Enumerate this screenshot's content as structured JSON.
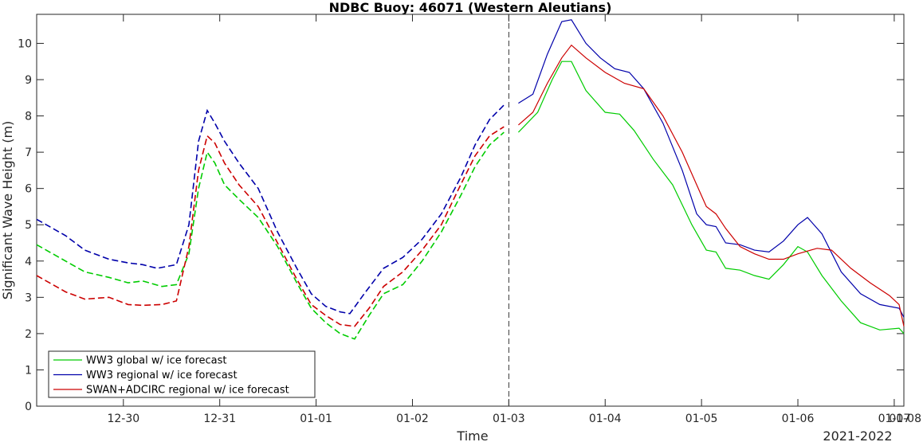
{
  "chart_data": {
    "type": "line",
    "title": "NDBC Buoy: 46071 (Western Aleutians)",
    "xlabel": "Time",
    "ylabel": "Significant Wave Height (m)",
    "x_secondary_label": "2021-2022",
    "xlim": [
      0,
      9.0
    ],
    "ylim": [
      0,
      10.8
    ],
    "x_ticks": [
      {
        "value": 0.9,
        "label": "12-30"
      },
      {
        "value": 1.9,
        "label": "12-31"
      },
      {
        "value": 2.9,
        "label": "01-01"
      },
      {
        "value": 3.9,
        "label": "01-02"
      },
      {
        "value": 4.9,
        "label": "01-03"
      },
      {
        "value": 5.9,
        "label": "01-04"
      },
      {
        "value": 6.9,
        "label": "01-05"
      },
      {
        "value": 7.9,
        "label": "01-06"
      },
      {
        "value": 8.9,
        "label": "01-07"
      },
      {
        "value": 9.0,
        "label": "01-08"
      }
    ],
    "y_ticks": [
      0,
      1,
      2,
      3,
      4,
      5,
      6,
      7,
      8,
      9,
      10
    ],
    "forecast_start_x": 4.9,
    "legend_position": "bottom-left",
    "colors": {
      "green": "#00cc00",
      "blue": "#0000aa",
      "red": "#cc0000",
      "axis": "#262626"
    },
    "series": [
      {
        "name": "WW3 global w/ ice forecast",
        "color": "#00cc00",
        "points": [
          [
            0.0,
            4.45
          ],
          [
            0.3,
            4.0
          ],
          [
            0.5,
            3.7
          ],
          [
            0.75,
            3.55
          ],
          [
            0.95,
            3.4
          ],
          [
            1.1,
            3.45
          ],
          [
            1.3,
            3.3
          ],
          [
            1.45,
            3.35
          ],
          [
            1.58,
            4.2
          ],
          [
            1.68,
            6.0
          ],
          [
            1.77,
            7.0
          ],
          [
            1.85,
            6.7
          ],
          [
            1.95,
            6.1
          ],
          [
            2.1,
            5.7
          ],
          [
            2.3,
            5.2
          ],
          [
            2.5,
            4.4
          ],
          [
            2.7,
            3.4
          ],
          [
            2.85,
            2.7
          ],
          [
            3.0,
            2.3
          ],
          [
            3.15,
            2.0
          ],
          [
            3.3,
            1.85
          ],
          [
            3.45,
            2.5
          ],
          [
            3.6,
            3.1
          ],
          [
            3.8,
            3.35
          ],
          [
            4.0,
            4.0
          ],
          [
            4.2,
            4.8
          ],
          [
            4.4,
            5.8
          ],
          [
            4.55,
            6.6
          ],
          [
            4.7,
            7.2
          ],
          [
            4.85,
            7.55
          ],
          [
            5.0,
            7.55
          ],
          [
            5.2,
            8.1
          ],
          [
            5.35,
            9.0
          ],
          [
            5.45,
            9.5
          ],
          [
            5.55,
            9.5
          ],
          [
            5.7,
            8.7
          ],
          [
            5.9,
            8.1
          ],
          [
            6.05,
            8.05
          ],
          [
            6.2,
            7.6
          ],
          [
            6.4,
            6.8
          ],
          [
            6.6,
            6.1
          ],
          [
            6.8,
            5.0
          ],
          [
            6.95,
            4.3
          ],
          [
            7.05,
            4.25
          ],
          [
            7.15,
            3.8
          ],
          [
            7.3,
            3.75
          ],
          [
            7.45,
            3.6
          ],
          [
            7.6,
            3.5
          ],
          [
            7.75,
            3.9
          ],
          [
            7.9,
            4.4
          ],
          [
            8.0,
            4.25
          ],
          [
            8.15,
            3.6
          ],
          [
            8.35,
            2.9
          ],
          [
            8.55,
            2.3
          ],
          [
            8.75,
            2.1
          ],
          [
            8.95,
            2.15
          ],
          [
            9.0,
            2.0
          ]
        ]
      },
      {
        "name": "WW3 regional w/ ice forecast",
        "color": "#0000aa",
        "points": [
          [
            0.0,
            5.15
          ],
          [
            0.3,
            4.7
          ],
          [
            0.5,
            4.3
          ],
          [
            0.75,
            4.05
          ],
          [
            0.95,
            3.95
          ],
          [
            1.1,
            3.9
          ],
          [
            1.25,
            3.8
          ],
          [
            1.35,
            3.85
          ],
          [
            1.45,
            3.9
          ],
          [
            1.58,
            5.0
          ],
          [
            1.68,
            7.3
          ],
          [
            1.77,
            8.15
          ],
          [
            1.85,
            7.8
          ],
          [
            1.95,
            7.3
          ],
          [
            2.1,
            6.7
          ],
          [
            2.3,
            6.0
          ],
          [
            2.5,
            4.8
          ],
          [
            2.7,
            3.8
          ],
          [
            2.85,
            3.1
          ],
          [
            3.0,
            2.75
          ],
          [
            3.15,
            2.6
          ],
          [
            3.25,
            2.55
          ],
          [
            3.4,
            3.1
          ],
          [
            3.6,
            3.8
          ],
          [
            3.8,
            4.1
          ],
          [
            4.0,
            4.6
          ],
          [
            4.2,
            5.3
          ],
          [
            4.4,
            6.3
          ],
          [
            4.55,
            7.2
          ],
          [
            4.7,
            7.9
          ],
          [
            4.85,
            8.3
          ],
          [
            5.0,
            8.35
          ],
          [
            5.15,
            8.6
          ],
          [
            5.3,
            9.7
          ],
          [
            5.45,
            10.6
          ],
          [
            5.55,
            10.65
          ],
          [
            5.7,
            10.0
          ],
          [
            5.85,
            9.6
          ],
          [
            6.0,
            9.3
          ],
          [
            6.15,
            9.2
          ],
          [
            6.3,
            8.75
          ],
          [
            6.5,
            7.8
          ],
          [
            6.7,
            6.5
          ],
          [
            6.85,
            5.3
          ],
          [
            6.95,
            5.0
          ],
          [
            7.05,
            4.95
          ],
          [
            7.15,
            4.5
          ],
          [
            7.3,
            4.45
          ],
          [
            7.45,
            4.3
          ],
          [
            7.6,
            4.25
          ],
          [
            7.75,
            4.55
          ],
          [
            7.9,
            5.0
          ],
          [
            8.0,
            5.2
          ],
          [
            8.15,
            4.75
          ],
          [
            8.35,
            3.7
          ],
          [
            8.55,
            3.1
          ],
          [
            8.75,
            2.8
          ],
          [
            8.95,
            2.7
          ],
          [
            9.0,
            2.45
          ]
        ]
      },
      {
        "name": "SWAN+ADCIRC regional w/ ice forecast",
        "color": "#cc0000",
        "points": [
          [
            0.0,
            3.6
          ],
          [
            0.3,
            3.15
          ],
          [
            0.5,
            2.95
          ],
          [
            0.75,
            3.0
          ],
          [
            0.95,
            2.8
          ],
          [
            1.1,
            2.78
          ],
          [
            1.3,
            2.8
          ],
          [
            1.45,
            2.9
          ],
          [
            1.58,
            4.4
          ],
          [
            1.68,
            6.5
          ],
          [
            1.77,
            7.45
          ],
          [
            1.85,
            7.25
          ],
          [
            1.95,
            6.7
          ],
          [
            2.1,
            6.1
          ],
          [
            2.3,
            5.5
          ],
          [
            2.5,
            4.5
          ],
          [
            2.7,
            3.5
          ],
          [
            2.85,
            2.8
          ],
          [
            3.0,
            2.5
          ],
          [
            3.15,
            2.25
          ],
          [
            3.3,
            2.2
          ],
          [
            3.45,
            2.7
          ],
          [
            3.6,
            3.3
          ],
          [
            3.8,
            3.7
          ],
          [
            4.0,
            4.3
          ],
          [
            4.2,
            5.0
          ],
          [
            4.4,
            6.1
          ],
          [
            4.55,
            6.9
          ],
          [
            4.7,
            7.45
          ],
          [
            4.85,
            7.7
          ],
          [
            5.0,
            7.75
          ],
          [
            5.15,
            8.1
          ],
          [
            5.3,
            8.9
          ],
          [
            5.45,
            9.6
          ],
          [
            5.55,
            9.95
          ],
          [
            5.7,
            9.6
          ],
          [
            5.9,
            9.2
          ],
          [
            6.1,
            8.9
          ],
          [
            6.3,
            8.75
          ],
          [
            6.5,
            8.0
          ],
          [
            6.7,
            7.0
          ],
          [
            6.85,
            6.1
          ],
          [
            6.95,
            5.5
          ],
          [
            7.05,
            5.3
          ],
          [
            7.15,
            4.9
          ],
          [
            7.3,
            4.4
          ],
          [
            7.45,
            4.2
          ],
          [
            7.6,
            4.05
          ],
          [
            7.75,
            4.05
          ],
          [
            7.9,
            4.2
          ],
          [
            8.1,
            4.35
          ],
          [
            8.25,
            4.3
          ],
          [
            8.45,
            3.8
          ],
          [
            8.65,
            3.4
          ],
          [
            8.85,
            3.05
          ],
          [
            8.95,
            2.8
          ],
          [
            9.0,
            2.2
          ]
        ]
      }
    ]
  }
}
